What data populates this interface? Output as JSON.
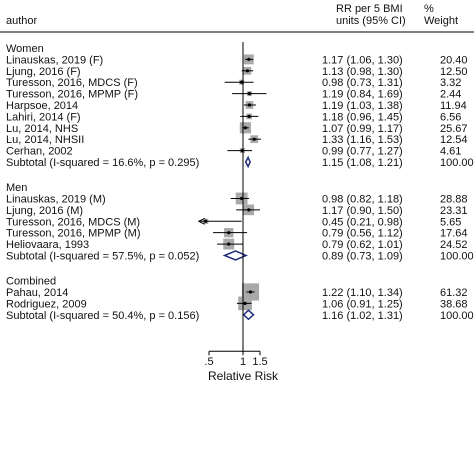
{
  "chart_data": {
    "type": "forest",
    "header": {
      "study": "author",
      "effect_line1": "RR per 5 BMI",
      "effect_line2": "units (95% CI)",
      "weight_line1": "%",
      "weight_line2": "Weight"
    },
    "xlabel": "Relative Risk",
    "x_ticks": [
      {
        "value": 0.5,
        "label": ".5"
      },
      {
        "value": 1,
        "label": "1"
      },
      {
        "value": 1.5,
        "label": "1.5"
      }
    ],
    "reference_line": 1,
    "groups": [
      {
        "name": "Women",
        "studies": [
          {
            "label": "Linauskas, 2019 (F)",
            "rr": 1.17,
            "lo": 1.06,
            "hi": 1.3,
            "ci_text": "1.17 (1.06, 1.30)",
            "weight": "20.40"
          },
          {
            "label": "Ljung, 2016 (F)",
            "rr": 1.13,
            "lo": 0.98,
            "hi": 1.3,
            "ci_text": "1.13 (0.98, 1.30)",
            "weight": "12.50"
          },
          {
            "label": "Turesson, 2016, MDCS (F)",
            "rr": 0.98,
            "lo": 0.73,
            "hi": 1.31,
            "ci_text": "0.98 (0.73, 1.31)",
            "weight": "3.32"
          },
          {
            "label": "Turesson, 2016, MPMP (F)",
            "rr": 1.19,
            "lo": 0.84,
            "hi": 1.69,
            "ci_text": "1.19 (0.84, 1.69)",
            "weight": "2.44"
          },
          {
            "label": "Harpsoe, 2014",
            "rr": 1.19,
            "lo": 1.03,
            "hi": 1.38,
            "ci_text": "1.19 (1.03, 1.38)",
            "weight": "11.94"
          },
          {
            "label": "Lahiri, 2014 (F)",
            "rr": 1.18,
            "lo": 0.96,
            "hi": 1.45,
            "ci_text": "1.18 (0.96, 1.45)",
            "weight": "6.56"
          },
          {
            "label": "Lu, 2014, NHS",
            "rr": 1.07,
            "lo": 0.99,
            "hi": 1.17,
            "ci_text": "1.07 (0.99, 1.17)",
            "weight": "25.67"
          },
          {
            "label": "Lu, 2014, NHSII",
            "rr": 1.33,
            "lo": 1.16,
            "hi": 1.53,
            "ci_text": "1.33 (1.16, 1.53)",
            "weight": "12.54"
          },
          {
            "label": "Cerhan, 2002",
            "rr": 0.99,
            "lo": 0.77,
            "hi": 1.27,
            "ci_text": "0.99 (0.77, 1.27)",
            "weight": "4.61"
          }
        ],
        "subtotal": {
          "label": "Subtotal  (I-squared = 16.6%, p = 0.295)",
          "rr": 1.15,
          "lo": 1.08,
          "hi": 1.21,
          "ci_text": "1.15 (1.08, 1.21)",
          "weight": "100.00"
        }
      },
      {
        "name": "Men",
        "studies": [
          {
            "label": "Linauskas, 2019 (M)",
            "rr": 0.98,
            "lo": 0.82,
            "hi": 1.18,
            "ci_text": "0.98 (0.82, 1.18)",
            "weight": "28.88"
          },
          {
            "label": "Ljung, 2016 (M)",
            "rr": 1.17,
            "lo": 0.9,
            "hi": 1.5,
            "ci_text": "1.17 (0.90, 1.50)",
            "weight": "23.31"
          },
          {
            "label": "Turesson, 2016, MDCS (M)",
            "rr": 0.45,
            "lo": 0.21,
            "hi": 0.98,
            "ci_text": "0.45 (0.21, 0.98)",
            "weight": "5.65"
          },
          {
            "label": "Turesson, 2016, MPMP (M)",
            "rr": 0.79,
            "lo": 0.56,
            "hi": 1.12,
            "ci_text": "0.79 (0.56, 1.12)",
            "weight": "17.64"
          },
          {
            "label": "Heliovaara, 1993",
            "rr": 0.79,
            "lo": 0.62,
            "hi": 1.01,
            "ci_text": "0.79 (0.62, 1.01)",
            "weight": "24.52"
          }
        ],
        "subtotal": {
          "label": "Subtotal  (I-squared = 57.5%, p = 0.052)",
          "rr": 0.89,
          "lo": 0.73,
          "hi": 1.09,
          "ci_text": "0.89 (0.73, 1.09)",
          "weight": "100.00"
        }
      },
      {
        "name": "Combined",
        "studies": [
          {
            "label": "Pahau, 2014",
            "rr": 1.22,
            "lo": 1.1,
            "hi": 1.34,
            "ci_text": "1.22 (1.10, 1.34)",
            "weight": "61.32"
          },
          {
            "label": "Rodriguez, 2009",
            "rr": 1.06,
            "lo": 0.91,
            "hi": 1.25,
            "ci_text": "1.06 (0.91, 1.25)",
            "weight": "38.68"
          }
        ],
        "subtotal": {
          "label": "Subtotal  (I-squared = 50.4%, p = 0.156)",
          "rr": 1.16,
          "lo": 1.02,
          "hi": 1.31,
          "ci_text": "1.16 (1.02, 1.31)",
          "weight": "100.00"
        }
      }
    ],
    "colors": {
      "box": "#a9a9a9",
      "point": "#000000",
      "ci_line": "#000000",
      "diamond": "#1f2d7a",
      "axis": "#000000"
    }
  }
}
